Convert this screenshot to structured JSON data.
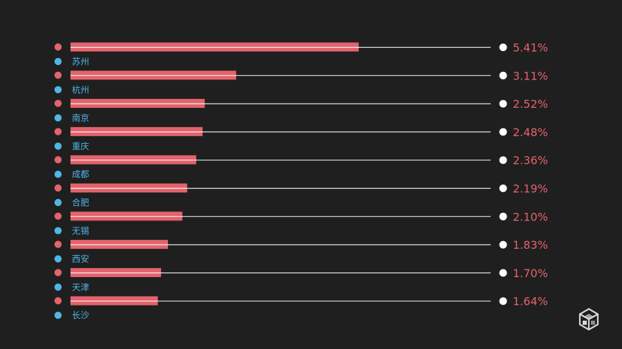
{
  "chart_data": {
    "type": "bar",
    "orientation": "horizontal",
    "categories": [
      "苏州",
      "杭州",
      "南京",
      "重庆",
      "成都",
      "合肥",
      "无锡",
      "西安",
      "天津",
      "长沙"
    ],
    "values": [
      5.41,
      3.11,
      2.52,
      2.48,
      2.36,
      2.19,
      2.1,
      1.83,
      1.7,
      1.64
    ],
    "value_labels": [
      "5.41%",
      "3.11%",
      "2.52%",
      "2.48%",
      "2.36%",
      "2.19%",
      "2.10%",
      "1.83%",
      "1.70%",
      "1.64%"
    ],
    "unit": "%",
    "xlim": [
      0,
      5.41
    ],
    "grid": false,
    "legend": "none"
  },
  "colors": {
    "background": "#1f1f1f",
    "bar": "#e4636c",
    "bar_divider": "#f5f5f5",
    "value_text": "#e4636c",
    "category_dot": "#4fb6e8",
    "category_text": "#4fb6e8",
    "guide_line": "#e8e8e8",
    "end_marker": "#ffffff",
    "logo": "#d9d9d9"
  },
  "logo": {
    "icon": "cube-logo-icon"
  }
}
